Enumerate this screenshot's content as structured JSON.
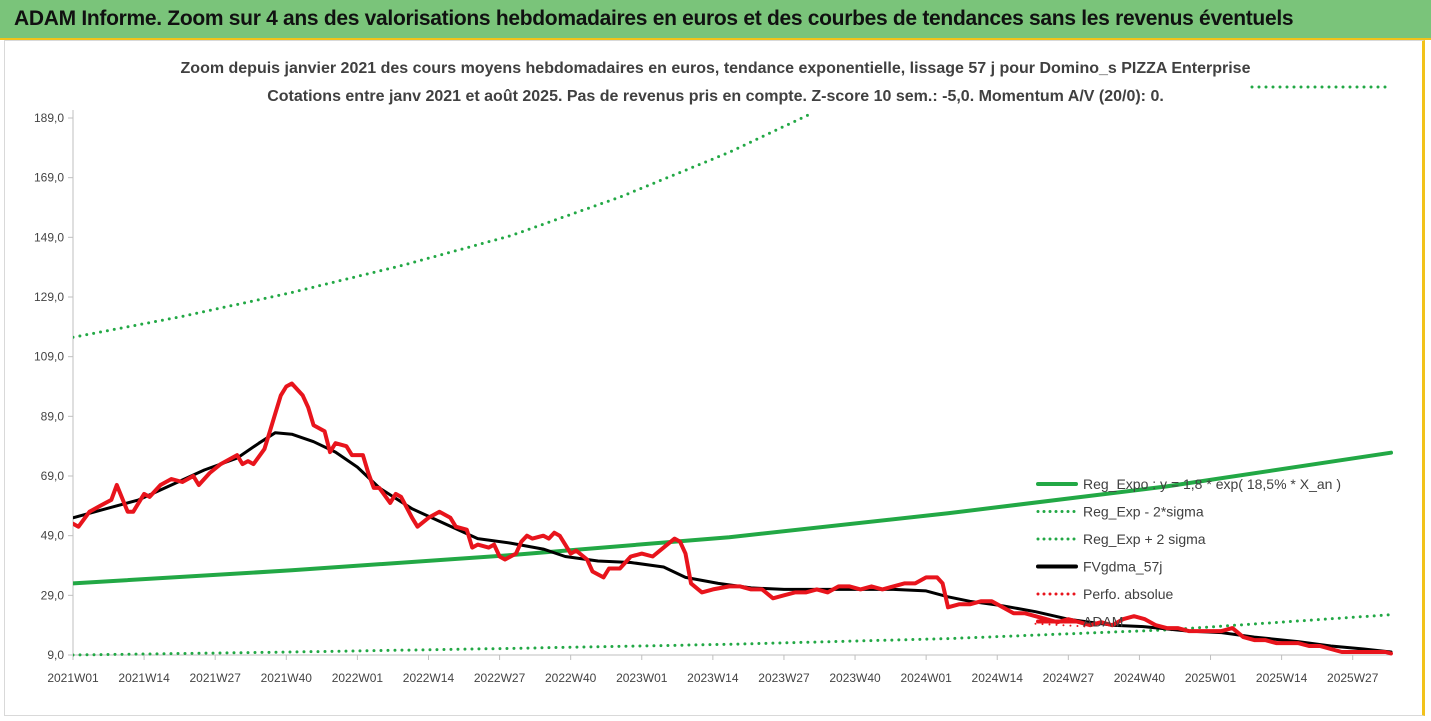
{
  "banner": {
    "title": "ADAM Informe. Zoom sur 4 ans des valorisations hebdomadaires en euros et des courbes de tendances sans les revenus éventuels"
  },
  "chart_data": {
    "type": "line",
    "title": "Zoom depuis janvier 2021 des cours moyens hebdomadaires en euros, tendance exponentielle, lissage 57 j pour Domino_s PIZZA Enterprise",
    "subtitle": "Cotations entre janv 2021 et août 2025. Pas de revenus pris en compte. Z-score 10 sem.: -5,0. Momentum A/V (20/0): 0.",
    "ylim": [
      9,
      189
    ],
    "y_ticks": [
      "9,0",
      "29,0",
      "49,0",
      "69,0",
      "89,0",
      "109,0",
      "129,0",
      "149,0",
      "169,0",
      "189,0"
    ],
    "x_range_weeks": [
      0,
      241
    ],
    "x_ticks": [
      {
        "label": "2021W01",
        "week": 0
      },
      {
        "label": "2021W14",
        "week": 13
      },
      {
        "label": "2021W27",
        "week": 26
      },
      {
        "label": "2021W40",
        "week": 39
      },
      {
        "label": "2022W01",
        "week": 52
      },
      {
        "label": "2022W14",
        "week": 65
      },
      {
        "label": "2022W27",
        "week": 78
      },
      {
        "label": "2022W40",
        "week": 91
      },
      {
        "label": "2023W01",
        "week": 104
      },
      {
        "label": "2023W14",
        "week": 117
      },
      {
        "label": "2023W27",
        "week": 130
      },
      {
        "label": "2023W40",
        "week": 143
      },
      {
        "label": "2024W01",
        "week": 156
      },
      {
        "label": "2024W14",
        "week": 169
      },
      {
        "label": "2024W27",
        "week": 182
      },
      {
        "label": "2024W40",
        "week": 195
      },
      {
        "label": "2025W01",
        "week": 208
      },
      {
        "label": "2025W14",
        "week": 221
      },
      {
        "label": "2025W27",
        "week": 234
      }
    ],
    "series": [
      {
        "name": "Reg_Expo : y = 1,8 * exp( 18,5% * X_an )",
        "color": "#22a845",
        "style": "solid",
        "width": 4,
        "points": [
          [
            0,
            33.0
          ],
          [
            40,
            37.4
          ],
          [
            80,
            42.5
          ],
          [
            120,
            48.5
          ],
          [
            160,
            56.5
          ],
          [
            200,
            65.5
          ],
          [
            241,
            76.8
          ]
        ]
      },
      {
        "name": "Reg_Exp - 2*sigma",
        "color": "#22a845",
        "style": "dotted",
        "width": 3,
        "points": [
          [
            0,
            9.0
          ],
          [
            40,
            10.0
          ],
          [
            80,
            11.2
          ],
          [
            120,
            12.6
          ],
          [
            160,
            14.5
          ],
          [
            200,
            17.4
          ],
          [
            241,
            22.5
          ]
        ]
      },
      {
        "name": "Reg_Exp + 2 sigma",
        "color": "#22a845",
        "style": "dotted",
        "width": 3,
        "points": [
          [
            0,
            115.5
          ],
          [
            20,
            122.5
          ],
          [
            40,
            130.5
          ],
          [
            60,
            139.5
          ],
          [
            80,
            149.5
          ],
          [
            100,
            162.5
          ],
          [
            120,
            177.5
          ],
          [
            135,
            190.5
          ]
        ]
      },
      {
        "name": "FVgdma_57j",
        "color": "#000000",
        "style": "solid",
        "width": 3,
        "points": [
          [
            0,
            55
          ],
          [
            6,
            58
          ],
          [
            12,
            61
          ],
          [
            18,
            66
          ],
          [
            24,
            71
          ],
          [
            30,
            75
          ],
          [
            34,
            80
          ],
          [
            37,
            83.5
          ],
          [
            40,
            83
          ],
          [
            44,
            80.5
          ],
          [
            48,
            77
          ],
          [
            52,
            72
          ],
          [
            56,
            65
          ],
          [
            62,
            58
          ],
          [
            68,
            53
          ],
          [
            74,
            48
          ],
          [
            80,
            46.5
          ],
          [
            86,
            44.5
          ],
          [
            90,
            42
          ],
          [
            96,
            40.5
          ],
          [
            102,
            40
          ],
          [
            108,
            38.5
          ],
          [
            112,
            35
          ],
          [
            118,
            33
          ],
          [
            124,
            31.5
          ],
          [
            130,
            31
          ],
          [
            140,
            31
          ],
          [
            150,
            31
          ],
          [
            156,
            30.5
          ],
          [
            160,
            28.5
          ],
          [
            164,
            27
          ],
          [
            170,
            25.5
          ],
          [
            176,
            23.5
          ],
          [
            182,
            21
          ],
          [
            190,
            19
          ],
          [
            196,
            18.5
          ],
          [
            204,
            17
          ],
          [
            210,
            16.5
          ],
          [
            216,
            15
          ],
          [
            224,
            13.5
          ],
          [
            230,
            12
          ],
          [
            236,
            11
          ],
          [
            241,
            10
          ]
        ]
      },
      {
        "name": "Perfo. absolue",
        "color": "#e8141c",
        "style": "dotted",
        "width": 2,
        "points": [
          [
            176,
            19.5
          ],
          [
            186,
            18.5
          ]
        ]
      },
      {
        "name": "ADAM",
        "color": "#e8141c",
        "style": "solid",
        "width": 4,
        "points": [
          [
            0,
            53
          ],
          [
            1,
            52
          ],
          [
            3,
            57
          ],
          [
            5,
            59
          ],
          [
            7,
            61
          ],
          [
            8,
            66
          ],
          [
            10,
            57
          ],
          [
            11,
            57
          ],
          [
            13,
            63
          ],
          [
            14,
            62
          ],
          [
            16,
            66
          ],
          [
            18,
            68
          ],
          [
            20,
            67
          ],
          [
            22,
            69
          ],
          [
            23,
            66
          ],
          [
            25,
            70
          ],
          [
            27,
            73
          ],
          [
            29,
            75
          ],
          [
            30,
            76
          ],
          [
            31,
            73
          ],
          [
            32,
            74
          ],
          [
            33,
            73
          ],
          [
            35,
            78
          ],
          [
            36,
            84
          ],
          [
            37,
            90
          ],
          [
            38,
            96
          ],
          [
            39,
            99
          ],
          [
            40,
            100
          ],
          [
            42,
            96
          ],
          [
            43,
            92
          ],
          [
            44,
            86
          ],
          [
            46,
            84
          ],
          [
            47,
            77
          ],
          [
            48,
            80
          ],
          [
            50,
            79
          ],
          [
            51,
            76
          ],
          [
            53,
            76
          ],
          [
            54,
            70
          ],
          [
            55,
            65
          ],
          [
            56,
            65
          ],
          [
            58,
            60
          ],
          [
            59,
            63
          ],
          [
            60,
            62
          ],
          [
            62,
            55
          ],
          [
            63,
            52
          ],
          [
            65,
            55
          ],
          [
            67,
            57
          ],
          [
            69,
            55
          ],
          [
            70,
            52
          ],
          [
            72,
            51
          ],
          [
            73,
            45
          ],
          [
            74,
            46
          ],
          [
            76,
            45
          ],
          [
            77,
            46
          ],
          [
            78,
            42
          ],
          [
            79,
            41
          ],
          [
            81,
            43
          ],
          [
            82,
            47
          ],
          [
            83,
            49
          ],
          [
            84,
            48
          ],
          [
            86,
            49
          ],
          [
            87,
            48
          ],
          [
            88,
            50
          ],
          [
            89,
            49
          ],
          [
            90,
            46
          ],
          [
            91,
            43
          ],
          [
            92,
            44
          ],
          [
            94,
            41
          ],
          [
            95,
            37
          ],
          [
            97,
            35
          ],
          [
            98,
            38
          ],
          [
            100,
            38
          ],
          [
            102,
            42
          ],
          [
            104,
            43
          ],
          [
            106,
            42
          ],
          [
            108,
            45
          ],
          [
            110,
            48
          ],
          [
            111,
            47
          ],
          [
            112,
            43
          ],
          [
            113,
            33
          ],
          [
            115,
            30
          ],
          [
            117,
            31
          ],
          [
            120,
            32
          ],
          [
            122,
            32
          ],
          [
            124,
            31
          ],
          [
            126,
            31
          ],
          [
            128,
            28
          ],
          [
            130,
            29
          ],
          [
            132,
            30
          ],
          [
            134,
            30
          ],
          [
            136,
            31
          ],
          [
            138,
            30
          ],
          [
            140,
            32
          ],
          [
            142,
            32
          ],
          [
            144,
            31
          ],
          [
            146,
            32
          ],
          [
            148,
            31
          ],
          [
            150,
            32
          ],
          [
            152,
            33
          ],
          [
            154,
            33
          ],
          [
            156,
            35
          ],
          [
            158,
            35
          ],
          [
            159,
            33
          ],
          [
            160,
            25
          ],
          [
            162,
            26
          ],
          [
            164,
            26
          ],
          [
            166,
            27
          ],
          [
            168,
            27
          ],
          [
            170,
            25
          ],
          [
            172,
            23
          ],
          [
            174,
            23
          ],
          [
            176,
            22
          ],
          [
            178,
            21
          ],
          [
            180,
            20
          ],
          [
            182,
            21
          ],
          [
            184,
            20
          ],
          [
            186,
            19
          ],
          [
            188,
            20
          ],
          [
            190,
            19
          ],
          [
            192,
            21
          ],
          [
            194,
            22
          ],
          [
            196,
            21
          ],
          [
            198,
            19
          ],
          [
            200,
            18
          ],
          [
            202,
            18
          ],
          [
            204,
            17
          ],
          [
            206,
            17
          ],
          [
            208,
            17
          ],
          [
            210,
            17
          ],
          [
            212,
            18
          ],
          [
            214,
            15
          ],
          [
            216,
            14
          ],
          [
            218,
            14
          ],
          [
            220,
            13
          ],
          [
            222,
            13
          ],
          [
            224,
            13
          ],
          [
            226,
            12
          ],
          [
            228,
            12
          ],
          [
            230,
            11
          ],
          [
            232,
            10
          ],
          [
            234,
            10
          ],
          [
            236,
            10
          ],
          [
            238,
            10
          ],
          [
            240,
            10
          ],
          [
            241,
            9.5
          ]
        ]
      }
    ]
  }
}
